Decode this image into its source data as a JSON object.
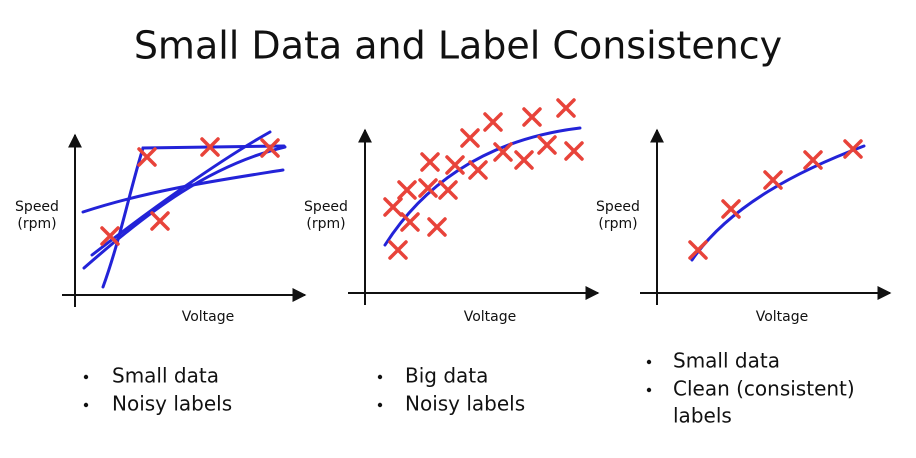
{
  "title": "Small Data and Label Consistency",
  "panels": [
    {
      "y_label": [
        "Speed",
        "(rpm)"
      ],
      "x_label": "Voltage",
      "bullets": [
        [
          "Small data"
        ],
        [
          "Noisy labels"
        ]
      ]
    },
    {
      "y_label": [
        "Speed",
        "(rpm)"
      ],
      "x_label": "Voltage",
      "bullets": [
        [
          "Big data"
        ],
        [
          "Noisy labels"
        ]
      ]
    },
    {
      "y_label": [
        "Speed",
        "(rpm)"
      ],
      "x_label": "Voltage",
      "bullets": [
        [
          "Small data"
        ],
        [
          "Clean (consistent)",
          "labels"
        ]
      ]
    }
  ]
}
